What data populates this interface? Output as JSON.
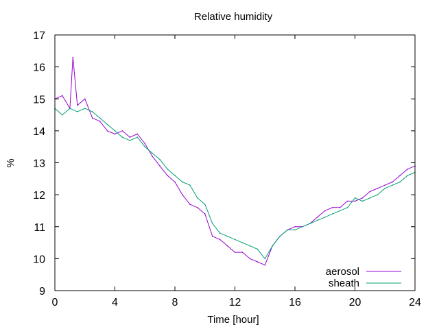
{
  "chart_data": {
    "type": "line",
    "title": "Relative humidity",
    "xlabel": "Time [hour]",
    "ylabel": "%",
    "xlim": [
      0,
      24
    ],
    "ylim": [
      9,
      17
    ],
    "xticks": [
      0,
      4,
      8,
      12,
      16,
      20,
      24
    ],
    "yticks": [
      9,
      10,
      11,
      12,
      13,
      14,
      15,
      16,
      17
    ],
    "grid": false,
    "legend_position": "bottom-right",
    "series": [
      {
        "name": "aerosol",
        "color": "#9400d3",
        "x": [
          0,
          0.5,
          1,
          1.2,
          1.5,
          2,
          2.5,
          3,
          3.5,
          4,
          4.5,
          5,
          5.5,
          6,
          6.5,
          7,
          7.5,
          8,
          8.5,
          9,
          9.5,
          10,
          10.5,
          11,
          11.5,
          12,
          12.5,
          13,
          13.5,
          14,
          14.5,
          15,
          15.5,
          16,
          16.5,
          17,
          17.5,
          18,
          18.5,
          19,
          19.5,
          20,
          20.5,
          21,
          21.5,
          22,
          22.5,
          23,
          23.5,
          24
        ],
        "y": [
          15.0,
          15.1,
          14.7,
          16.3,
          14.8,
          15.0,
          14.4,
          14.3,
          14.0,
          13.9,
          14.0,
          13.8,
          13.9,
          13.6,
          13.2,
          12.9,
          12.6,
          12.4,
          12.0,
          11.7,
          11.6,
          11.4,
          10.7,
          10.6,
          10.4,
          10.2,
          10.2,
          10.0,
          9.9,
          9.8,
          10.4,
          10.7,
          10.9,
          11.0,
          11.0,
          11.1,
          11.3,
          11.5,
          11.6,
          11.6,
          11.8,
          11.8,
          11.9,
          12.1,
          12.2,
          12.3,
          12.4,
          12.6,
          12.8,
          12.9
        ]
      },
      {
        "name": "sheath",
        "color": "#009e73",
        "x": [
          0,
          0.5,
          1,
          1.5,
          2,
          2.5,
          3,
          3.5,
          4,
          4.5,
          5,
          5.5,
          6,
          6.5,
          7,
          7.5,
          8,
          8.5,
          9,
          9.5,
          10,
          10.5,
          11,
          11.5,
          12,
          12.5,
          13,
          13.5,
          14,
          14.5,
          15,
          15.5,
          16,
          16.5,
          17,
          17.5,
          18,
          18.5,
          19,
          19.5,
          20,
          20.5,
          21,
          21.5,
          22,
          22.5,
          23,
          23.5,
          24
        ],
        "y": [
          14.7,
          14.5,
          14.7,
          14.6,
          14.7,
          14.6,
          14.4,
          14.2,
          14.0,
          13.8,
          13.7,
          13.8,
          13.5,
          13.3,
          13.1,
          12.8,
          12.6,
          12.4,
          12.3,
          11.9,
          11.7,
          11.1,
          10.8,
          10.7,
          10.6,
          10.5,
          10.4,
          10.3,
          10.0,
          10.4,
          10.7,
          10.9,
          10.9,
          11.0,
          11.1,
          11.2,
          11.3,
          11.4,
          11.5,
          11.6,
          11.9,
          11.8,
          11.9,
          12.0,
          12.2,
          12.3,
          12.4,
          12.6,
          12.7
        ]
      }
    ]
  }
}
